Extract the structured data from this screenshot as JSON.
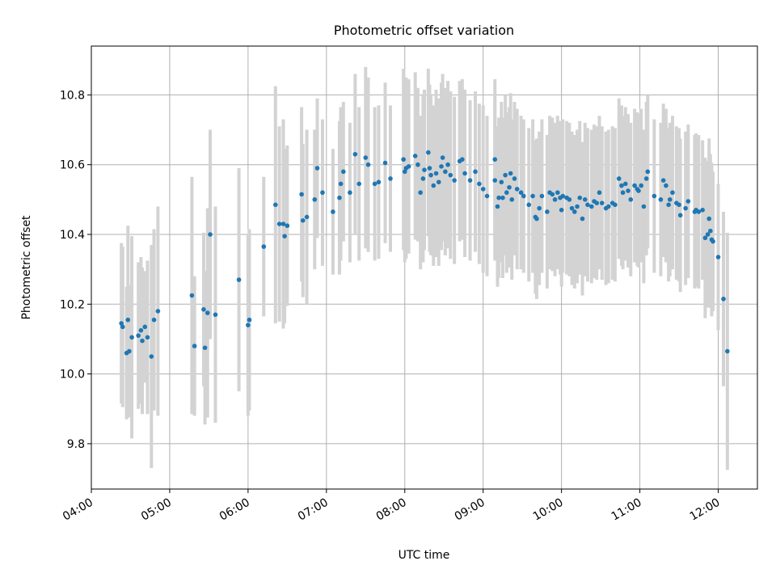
{
  "chart_data": {
    "type": "scatter",
    "title": "Photometric offset variation",
    "xlabel": "UTC time",
    "ylabel": "Photometric offset",
    "x_ticks": [
      "04:00",
      "05:00",
      "06:00",
      "07:00",
      "08:00",
      "09:00",
      "10:00",
      "11:00",
      "12:00"
    ],
    "y_ticks": [
      "9.8",
      "10.0",
      "10.2",
      "10.4",
      "10.6",
      "10.8"
    ],
    "xlim": [
      "04:00",
      "12:30"
    ],
    "ylim": [
      9.67,
      10.94
    ],
    "grid": true,
    "colors": {
      "points": "#1f77b4",
      "error_bars": "#d3d3d3",
      "grid": "#b0b0b0"
    },
    "points": [
      {
        "t": "04:23",
        "y": 10.145,
        "err": 0.23
      },
      {
        "t": "04:24",
        "y": 10.135,
        "err": 0.23
      },
      {
        "t": "04:27",
        "y": 10.06,
        "err": 0.19
      },
      {
        "t": "04:28",
        "y": 10.155,
        "err": 0.27
      },
      {
        "t": "04:29",
        "y": 10.065,
        "err": 0.19
      },
      {
        "t": "04:31",
        "y": 10.105,
        "err": 0.29
      },
      {
        "t": "04:36",
        "y": 10.11,
        "err": 0.21
      },
      {
        "t": "04:38",
        "y": 10.125,
        "err": 0.21
      },
      {
        "t": "04:39",
        "y": 10.095,
        "err": 0.21
      },
      {
        "t": "04:41",
        "y": 10.135,
        "err": 0.16
      },
      {
        "t": "04:43",
        "y": 10.105,
        "err": 0.22
      },
      {
        "t": "04:46",
        "y": 10.05,
        "err": 0.32
      },
      {
        "t": "04:48",
        "y": 10.155,
        "err": 0.26
      },
      {
        "t": "04:51",
        "y": 10.18,
        "err": 0.3
      },
      {
        "t": "05:17",
        "y": 10.225,
        "err": 0.34
      },
      {
        "t": "05:19",
        "y": 10.08,
        "err": 0.2
      },
      {
        "t": "05:26",
        "y": 10.185,
        "err": 0.22
      },
      {
        "t": "05:27",
        "y": 10.075,
        "err": 0.22
      },
      {
        "t": "05:29",
        "y": 10.175,
        "err": 0.3
      },
      {
        "t": "05:31",
        "y": 10.4,
        "err": 0.3
      },
      {
        "t": "05:35",
        "y": 10.17,
        "err": 0.31
      },
      {
        "t": "05:53",
        "y": 10.27,
        "err": 0.32
      },
      {
        "t": "06:00",
        "y": 10.14,
        "err": 0.26
      },
      {
        "t": "06:01",
        "y": 10.155,
        "err": 0.26
      },
      {
        "t": "06:12",
        "y": 10.365,
        "err": 0.2
      },
      {
        "t": "06:21",
        "y": 10.485,
        "err": 0.34
      },
      {
        "t": "06:24",
        "y": 10.43,
        "err": 0.28
      },
      {
        "t": "06:27",
        "y": 10.43,
        "err": 0.3
      },
      {
        "t": "06:28",
        "y": 10.395,
        "err": 0.25
      },
      {
        "t": "06:30",
        "y": 10.425,
        "err": 0.23
      },
      {
        "t": "06:41",
        "y": 10.515,
        "err": 0.25
      },
      {
        "t": "06:42",
        "y": 10.44,
        "err": 0.22
      },
      {
        "t": "06:45",
        "y": 10.45,
        "err": 0.25
      },
      {
        "t": "06:51",
        "y": 10.5,
        "err": 0.2
      },
      {
        "t": "06:53",
        "y": 10.59,
        "err": 0.2
      },
      {
        "t": "06:57",
        "y": 10.52,
        "err": 0.21
      },
      {
        "t": "07:05",
        "y": 10.465,
        "err": 0.18
      },
      {
        "t": "07:10",
        "y": 10.505,
        "err": 0.22
      },
      {
        "t": "07:11",
        "y": 10.545,
        "err": 0.22
      },
      {
        "t": "07:13",
        "y": 10.58,
        "err": 0.2
      },
      {
        "t": "07:18",
        "y": 10.52,
        "err": 0.2
      },
      {
        "t": "07:22",
        "y": 10.63,
        "err": 0.23
      },
      {
        "t": "07:25",
        "y": 10.545,
        "err": 0.22
      },
      {
        "t": "07:30",
        "y": 10.62,
        "err": 0.26
      },
      {
        "t": "07:32",
        "y": 10.6,
        "err": 0.25
      },
      {
        "t": "07:37",
        "y": 10.545,
        "err": 0.22
      },
      {
        "t": "07:40",
        "y": 10.55,
        "err": 0.22
      },
      {
        "t": "07:45",
        "y": 10.605,
        "err": 0.23
      },
      {
        "t": "07:49",
        "y": 10.56,
        "err": 0.21
      },
      {
        "t": "07:59",
        "y": 10.615,
        "err": 0.26
      },
      {
        "t": "08:00",
        "y": 10.58,
        "err": 0.26
      },
      {
        "t": "08:01",
        "y": 10.59,
        "err": 0.26
      },
      {
        "t": "08:03",
        "y": 10.595,
        "err": 0.25
      },
      {
        "t": "08:08",
        "y": 10.625,
        "err": 0.24
      },
      {
        "t": "08:10",
        "y": 10.6,
        "err": 0.22
      },
      {
        "t": "08:12",
        "y": 10.52,
        "err": 0.22
      },
      {
        "t": "08:14",
        "y": 10.56,
        "err": 0.24
      },
      {
        "t": "08:15",
        "y": 10.585,
        "err": 0.23
      },
      {
        "t": "08:18",
        "y": 10.635,
        "err": 0.24
      },
      {
        "t": "08:19",
        "y": 10.59,
        "err": 0.24
      },
      {
        "t": "08:20",
        "y": 10.57,
        "err": 0.23
      },
      {
        "t": "08:22",
        "y": 10.54,
        "err": 0.23
      },
      {
        "t": "08:24",
        "y": 10.575,
        "err": 0.24
      },
      {
        "t": "08:26",
        "y": 10.55,
        "err": 0.24
      },
      {
        "t": "08:28",
        "y": 10.595,
        "err": 0.24
      },
      {
        "t": "08:29",
        "y": 10.62,
        "err": 0.24
      },
      {
        "t": "08:31",
        "y": 10.58,
        "err": 0.24
      },
      {
        "t": "08:33",
        "y": 10.6,
        "err": 0.24
      },
      {
        "t": "08:35",
        "y": 10.57,
        "err": 0.24
      },
      {
        "t": "08:38",
        "y": 10.555,
        "err": 0.24
      },
      {
        "t": "08:42",
        "y": 10.61,
        "err": 0.23
      },
      {
        "t": "08:44",
        "y": 10.615,
        "err": 0.23
      },
      {
        "t": "08:46",
        "y": 10.575,
        "err": 0.24
      },
      {
        "t": "08:50",
        "y": 10.555,
        "err": 0.23
      },
      {
        "t": "08:54",
        "y": 10.58,
        "err": 0.23
      },
      {
        "t": "08:57",
        "y": 10.545,
        "err": 0.23
      },
      {
        "t": "09:00",
        "y": 10.53,
        "err": 0.24
      },
      {
        "t": "09:03",
        "y": 10.51,
        "err": 0.23
      },
      {
        "t": "09:09",
        "y": 10.615,
        "err": 0.23
      },
      {
        "t": "09:09",
        "y": 10.555,
        "err": 0.23
      },
      {
        "t": "09:11",
        "y": 10.48,
        "err": 0.23
      },
      {
        "t": "09:12",
        "y": 10.505,
        "err": 0.23
      },
      {
        "t": "09:14",
        "y": 10.55,
        "err": 0.23
      },
      {
        "t": "09:15",
        "y": 10.505,
        "err": 0.23
      },
      {
        "t": "09:17",
        "y": 10.57,
        "err": 0.23
      },
      {
        "t": "09:18",
        "y": 10.52,
        "err": 0.23
      },
      {
        "t": "09:20",
        "y": 10.535,
        "err": 0.23
      },
      {
        "t": "09:21",
        "y": 10.575,
        "err": 0.23
      },
      {
        "t": "09:22",
        "y": 10.5,
        "err": 0.23
      },
      {
        "t": "09:24",
        "y": 10.56,
        "err": 0.22
      },
      {
        "t": "09:26",
        "y": 10.53,
        "err": 0.23
      },
      {
        "t": "09:29",
        "y": 10.52,
        "err": 0.22
      },
      {
        "t": "09:31",
        "y": 10.51,
        "err": 0.22
      },
      {
        "t": "09:35",
        "y": 10.485,
        "err": 0.22
      },
      {
        "t": "09:38",
        "y": 10.51,
        "err": 0.22
      },
      {
        "t": "09:40",
        "y": 10.45,
        "err": 0.22
      },
      {
        "t": "09:41",
        "y": 10.445,
        "err": 0.23
      },
      {
        "t": "09:43",
        "y": 10.475,
        "err": 0.22
      },
      {
        "t": "09:45",
        "y": 10.51,
        "err": 0.22
      },
      {
        "t": "09:49",
        "y": 10.465,
        "err": 0.22
      },
      {
        "t": "09:51",
        "y": 10.52,
        "err": 0.22
      },
      {
        "t": "09:53",
        "y": 10.515,
        "err": 0.22
      },
      {
        "t": "09:55",
        "y": 10.5,
        "err": 0.22
      },
      {
        "t": "09:57",
        "y": 10.52,
        "err": 0.22
      },
      {
        "t": "09:59",
        "y": 10.505,
        "err": 0.22
      },
      {
        "t": "10:00",
        "y": 10.47,
        "err": 0.22
      },
      {
        "t": "10:01",
        "y": 10.51,
        "err": 0.22
      },
      {
        "t": "10:04",
        "y": 10.505,
        "err": 0.22
      },
      {
        "t": "10:06",
        "y": 10.5,
        "err": 0.22
      },
      {
        "t": "10:08",
        "y": 10.475,
        "err": 0.22
      },
      {
        "t": "10:10",
        "y": 10.465,
        "err": 0.22
      },
      {
        "t": "10:12",
        "y": 10.48,
        "err": 0.22
      },
      {
        "t": "10:14",
        "y": 10.505,
        "err": 0.22
      },
      {
        "t": "10:16",
        "y": 10.445,
        "err": 0.22
      },
      {
        "t": "10:18",
        "y": 10.5,
        "err": 0.22
      },
      {
        "t": "10:20",
        "y": 10.485,
        "err": 0.22
      },
      {
        "t": "10:23",
        "y": 10.48,
        "err": 0.22
      },
      {
        "t": "10:25",
        "y": 10.495,
        "err": 0.22
      },
      {
        "t": "10:27",
        "y": 10.49,
        "err": 0.22
      },
      {
        "t": "10:29",
        "y": 10.52,
        "err": 0.22
      },
      {
        "t": "10:31",
        "y": 10.49,
        "err": 0.22
      },
      {
        "t": "10:34",
        "y": 10.475,
        "err": 0.22
      },
      {
        "t": "10:36",
        "y": 10.48,
        "err": 0.22
      },
      {
        "t": "10:39",
        "y": 10.49,
        "err": 0.22
      },
      {
        "t": "10:41",
        "y": 10.485,
        "err": 0.22
      },
      {
        "t": "10:44",
        "y": 10.56,
        "err": 0.23
      },
      {
        "t": "10:46",
        "y": 10.54,
        "err": 0.23
      },
      {
        "t": "10:47",
        "y": 10.52,
        "err": 0.22
      },
      {
        "t": "10:49",
        "y": 10.545,
        "err": 0.22
      },
      {
        "t": "10:51",
        "y": 10.525,
        "err": 0.22
      },
      {
        "t": "10:53",
        "y": 10.5,
        "err": 0.22
      },
      {
        "t": "10:56",
        "y": 10.54,
        "err": 0.22
      },
      {
        "t": "10:58",
        "y": 10.53,
        "err": 0.22
      },
      {
        "t": "10:59",
        "y": 10.525,
        "err": 0.22
      },
      {
        "t": "11:01",
        "y": 10.54,
        "err": 0.22
      },
      {
        "t": "11:03",
        "y": 10.48,
        "err": 0.22
      },
      {
        "t": "11:05",
        "y": 10.56,
        "err": 0.22
      },
      {
        "t": "11:06",
        "y": 10.58,
        "err": 0.22
      },
      {
        "t": "11:11",
        "y": 10.51,
        "err": 0.22
      },
      {
        "t": "11:16",
        "y": 10.5,
        "err": 0.22
      },
      {
        "t": "11:18",
        "y": 10.555,
        "err": 0.22
      },
      {
        "t": "11:20",
        "y": 10.54,
        "err": 0.22
      },
      {
        "t": "11:22",
        "y": 10.485,
        "err": 0.22
      },
      {
        "t": "11:23",
        "y": 10.5,
        "err": 0.22
      },
      {
        "t": "11:25",
        "y": 10.52,
        "err": 0.22
      },
      {
        "t": "11:28",
        "y": 10.49,
        "err": 0.22
      },
      {
        "t": "11:30",
        "y": 10.485,
        "err": 0.22
      },
      {
        "t": "11:31",
        "y": 10.455,
        "err": 0.22
      },
      {
        "t": "11:35",
        "y": 10.475,
        "err": 0.22
      },
      {
        "t": "11:37",
        "y": 10.495,
        "err": 0.22
      },
      {
        "t": "11:42",
        "y": 10.465,
        "err": 0.22
      },
      {
        "t": "11:43",
        "y": 10.47,
        "err": 0.22
      },
      {
        "t": "11:45",
        "y": 10.465,
        "err": 0.22
      },
      {
        "t": "11:48",
        "y": 10.47,
        "err": 0.2
      },
      {
        "t": "11:50",
        "y": 10.39,
        "err": 0.23
      },
      {
        "t": "11:52",
        "y": 10.4,
        "err": 0.21
      },
      {
        "t": "11:53",
        "y": 10.445,
        "err": 0.23
      },
      {
        "t": "11:54",
        "y": 10.41,
        "err": 0.22
      },
      {
        "t": "11:55",
        "y": 10.385,
        "err": 0.22
      },
      {
        "t": "11:56",
        "y": 10.38,
        "err": 0.2
      },
      {
        "t": "12:00",
        "y": 10.335,
        "err": 0.21
      },
      {
        "t": "12:04",
        "y": 10.215,
        "err": 0.25
      },
      {
        "t": "12:07",
        "y": 10.065,
        "err": 0.34
      }
    ]
  }
}
